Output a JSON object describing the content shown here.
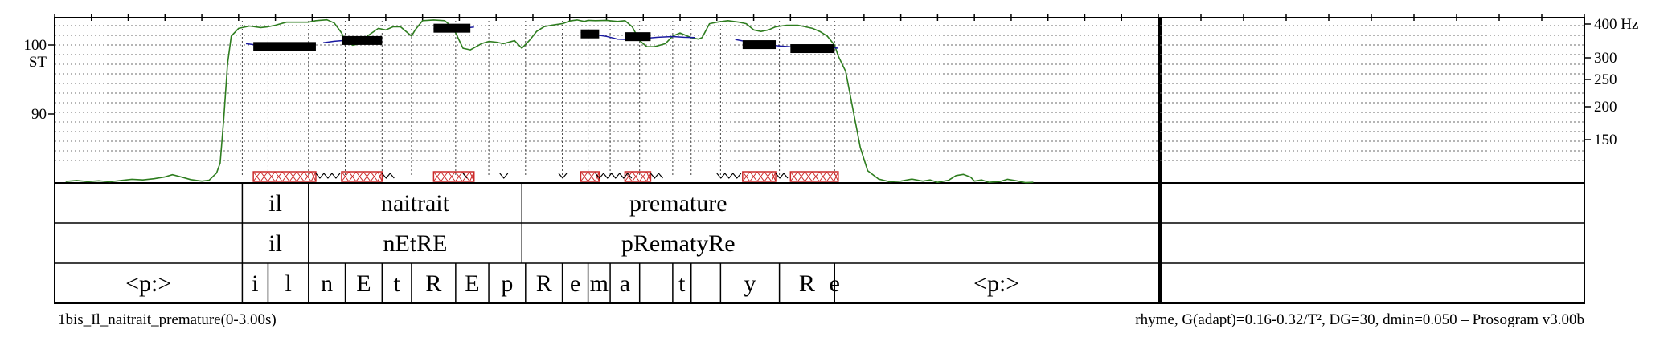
{
  "chart_data": {
    "type": "prosogram",
    "time_range_s": [
      0,
      3.0
    ],
    "left_axis": {
      "unit": "ST",
      "ticks": [
        {
          "value": 100,
          "label": "100"
        },
        {
          "value": 90,
          "label": "90"
        }
      ],
      "range_st": [
        78.6,
        102.0
      ]
    },
    "right_axis": {
      "unit": "Hz",
      "ticks": [
        {
          "value": 400,
          "label": "400 Hz"
        },
        {
          "value": 300,
          "label": "300"
        },
        {
          "value": 250,
          "label": "250"
        },
        {
          "value": 200,
          "label": "200"
        },
        {
          "value": 150,
          "label": "150"
        }
      ]
    },
    "second_panel_range_s": [
      3.0,
      4.0
    ],
    "pitch_curve_green": [
      [
        0.03,
        -2.0
      ],
      [
        0.06,
        -1.4
      ],
      [
        0.09,
        -2.1
      ],
      [
        0.12,
        -1.6
      ],
      [
        0.15,
        -2.2
      ],
      [
        0.18,
        -1.4
      ],
      [
        0.21,
        -0.6
      ],
      [
        0.24,
        -1.0
      ],
      [
        0.27,
        -0.2
      ],
      [
        0.3,
        1.0
      ],
      [
        0.32,
        2.4
      ],
      [
        0.34,
        1.2
      ],
      [
        0.37,
        -0.8
      ],
      [
        0.4,
        -1.8
      ],
      [
        0.42,
        -1.2
      ],
      [
        0.44,
        3.5
      ],
      [
        0.45,
        10.0
      ],
      [
        0.46,
        40.0
      ],
      [
        0.47,
        75.0
      ],
      [
        0.48,
        93.0
      ],
      [
        0.5,
        98.0
      ],
      [
        0.53,
        99.5
      ],
      [
        0.56,
        98.5
      ],
      [
        0.58,
        99.0
      ],
      [
        0.6,
        100.0
      ],
      [
        0.63,
        102.0
      ],
      [
        0.66,
        102.0
      ],
      [
        0.69,
        102.0
      ],
      [
        0.71,
        103.0
      ],
      [
        0.74,
        103.6
      ],
      [
        0.76,
        101.5
      ],
      [
        0.78,
        95.0
      ],
      [
        0.79,
        90.0
      ],
      [
        0.81,
        87.0
      ],
      [
        0.83,
        88.0
      ],
      [
        0.85,
        93.0
      ],
      [
        0.88,
        98.0
      ],
      [
        0.9,
        97.0
      ],
      [
        0.92,
        99.0
      ],
      [
        0.94,
        99.0
      ],
      [
        0.96,
        95.0
      ],
      [
        0.97,
        93.0
      ],
      [
        0.98,
        97.0
      ],
      [
        1.0,
        103.0
      ],
      [
        1.03,
        103.5
      ],
      [
        1.06,
        103.0
      ],
      [
        1.08,
        99.0
      ],
      [
        1.09,
        95.0
      ],
      [
        1.11,
        85.0
      ],
      [
        1.13,
        84.0
      ],
      [
        1.16,
        88.0
      ],
      [
        1.18,
        89.5
      ],
      [
        1.2,
        89.0
      ],
      [
        1.22,
        88.0
      ],
      [
        1.25,
        90.0
      ],
      [
        1.27,
        85.0
      ],
      [
        1.29,
        90.0
      ],
      [
        1.31,
        96.0
      ],
      [
        1.33,
        99.0
      ],
      [
        1.35,
        100.0
      ],
      [
        1.38,
        101.0
      ],
      [
        1.4,
        102.8
      ],
      [
        1.42,
        103.5
      ],
      [
        1.44,
        102.5
      ],
      [
        1.45,
        103.2
      ],
      [
        1.47,
        103.0
      ],
      [
        1.5,
        103.2
      ],
      [
        1.53,
        102.5
      ],
      [
        1.55,
        103.0
      ],
      [
        1.57,
        99.0
      ],
      [
        1.59,
        90.0
      ],
      [
        1.61,
        86.0
      ],
      [
        1.63,
        86.0
      ],
      [
        1.66,
        88.0
      ],
      [
        1.68,
        93.0
      ],
      [
        1.7,
        95.0
      ],
      [
        1.73,
        92.0
      ],
      [
        1.75,
        91.0
      ],
      [
        1.76,
        92.0
      ],
      [
        1.78,
        101.0
      ],
      [
        1.8,
        102.0
      ],
      [
        1.83,
        103.0
      ],
      [
        1.86,
        102.0
      ],
      [
        1.88,
        101.0
      ],
      [
        1.9,
        97.0
      ],
      [
        1.92,
        96.0
      ],
      [
        1.94,
        97.0
      ],
      [
        1.96,
        99.0
      ],
      [
        1.99,
        100.0
      ],
      [
        2.02,
        100.0
      ],
      [
        2.04,
        99.0
      ],
      [
        2.06,
        98.0
      ],
      [
        2.08,
        96.0
      ],
      [
        2.1,
        93.0
      ],
      [
        2.12,
        87.0
      ],
      [
        2.13,
        80.0
      ],
      [
        2.15,
        70.0
      ],
      [
        2.17,
        45.0
      ],
      [
        2.19,
        20.0
      ],
      [
        2.21,
        5.0
      ],
      [
        2.24,
        -0.5
      ],
      [
        2.27,
        -2.2
      ],
      [
        2.3,
        -1.8
      ],
      [
        2.33,
        -0.5
      ],
      [
        2.36,
        -1.8
      ],
      [
        2.38,
        -1.0
      ],
      [
        2.4,
        -2.6
      ],
      [
        2.43,
        -1.2
      ],
      [
        2.45,
        1.8
      ],
      [
        2.47,
        2.6
      ],
      [
        2.49,
        0.8
      ],
      [
        2.5,
        -1.8
      ],
      [
        2.52,
        -1.0
      ],
      [
        2.54,
        -2.6
      ],
      [
        2.57,
        -2.0
      ],
      [
        2.59,
        -0.6
      ],
      [
        2.61,
        -1.4
      ],
      [
        2.64,
        -2.8
      ],
      [
        2.66,
        -2.6
      ]
    ],
    "pitch_curve_blue": [
      {
        "from": 0.52,
        "to": 0.71,
        "points": [
          [
            0.52,
            88.0
          ],
          [
            0.55,
            87.1
          ],
          [
            0.58,
            86.5
          ],
          [
            0.61,
            86.2
          ],
          [
            0.64,
            86.1
          ],
          [
            0.67,
            86.8
          ],
          [
            0.71,
            87.6
          ]
        ]
      },
      {
        "from": 0.73,
        "to": 0.89,
        "points": [
          [
            0.73,
            88.6
          ],
          [
            0.76,
            89.6
          ],
          [
            0.79,
            90.2
          ],
          [
            0.82,
            90.3
          ],
          [
            0.85,
            90.7
          ],
          [
            0.87,
            90.5
          ],
          [
            0.89,
            90.4
          ]
        ]
      },
      {
        "from": 1.03,
        "to": 1.14,
        "points": [
          [
            1.03,
            97.8
          ],
          [
            1.06,
            97.5
          ],
          [
            1.09,
            97.8
          ],
          [
            1.12,
            98.3
          ],
          [
            1.14,
            98.8
          ]
        ]
      },
      {
        "from": 1.43,
        "to": 1.74,
        "points": [
          [
            1.43,
            95.5
          ],
          [
            1.46,
            94.2
          ],
          [
            1.5,
            92.8
          ],
          [
            1.53,
            91.0
          ],
          [
            1.56,
            90.8
          ],
          [
            1.6,
            91.4
          ],
          [
            1.64,
            92.2
          ],
          [
            1.68,
            92.7
          ],
          [
            1.71,
            92.2
          ],
          [
            1.74,
            92.0
          ]
        ]
      },
      {
        "from": 1.85,
        "to": 2.13,
        "points": [
          [
            1.85,
            90.8
          ],
          [
            1.88,
            89.4
          ],
          [
            1.91,
            87.8
          ],
          [
            1.94,
            87.2
          ],
          [
            1.97,
            86.5
          ],
          [
            2.0,
            86.0
          ],
          [
            2.03,
            85.7
          ],
          [
            2.06,
            85.5
          ],
          [
            2.09,
            85.6
          ],
          [
            2.11,
            85.5
          ],
          [
            2.13,
            85.1
          ]
        ]
      }
    ],
    "stylized_tones": [
      {
        "t1": 0.54,
        "t2": 0.71,
        "st": 86.2
      },
      {
        "t1": 0.78,
        "t2": 0.89,
        "st": 90.1
      },
      {
        "t1": 1.03,
        "t2": 1.13,
        "st": 98.1
      },
      {
        "t1": 1.43,
        "t2": 1.48,
        "st": 94.4
      },
      {
        "t1": 1.55,
        "t2": 1.62,
        "st": 92.6
      },
      {
        "t1": 1.87,
        "t2": 1.96,
        "st": 87.4
      },
      {
        "t1": 2.0,
        "t2": 2.12,
        "st": 84.8
      }
    ],
    "nuclei": [
      [
        0.54,
        0.71
      ],
      [
        0.78,
        0.89
      ],
      [
        1.03,
        1.14
      ],
      [
        1.43,
        1.48
      ],
      [
        1.55,
        1.62
      ],
      [
        1.87,
        1.96
      ],
      [
        2.0,
        2.13
      ]
    ],
    "voicing_zigzags": [
      [
        0.71,
        0.78
      ],
      [
        0.89,
        0.93
      ],
      [
        1.11,
        1.13
      ],
      [
        1.21,
        1.24
      ],
      [
        1.37,
        1.4
      ],
      [
        1.47,
        1.57
      ],
      [
        1.62,
        1.66
      ],
      [
        1.8,
        1.87
      ],
      [
        1.96,
        2.0
      ]
    ],
    "segment_boundaries_s": [
      0.51,
      0.58,
      0.69,
      0.79,
      0.89,
      0.97,
      1.09,
      1.18,
      1.28,
      1.38,
      1.45,
      1.51,
      1.59,
      1.68,
      1.73,
      1.81,
      1.97,
      2.12
    ],
    "tiers": [
      {
        "name": "syllables_orth",
        "intervals": [
          {
            "t1": 0.51,
            "t2": 0.69,
            "text": "il"
          },
          {
            "t1": 0.69,
            "t2": 1.27,
            "text": "naitrait"
          },
          {
            "t1": 1.27,
            "t2": 2.12,
            "text": "premature"
          }
        ]
      },
      {
        "name": "syllables_phon",
        "intervals": [
          {
            "t1": 0.51,
            "t2": 0.69,
            "text": "il"
          },
          {
            "t1": 0.69,
            "t2": 1.27,
            "text": "nEtRE"
          },
          {
            "t1": 1.27,
            "t2": 2.12,
            "text": "pRematyRe"
          }
        ]
      },
      {
        "name": "phones",
        "intervals": [
          {
            "t1": 0.0,
            "t2": 0.51,
            "text": "<p:>"
          },
          {
            "t1": 0.51,
            "t2": 0.58,
            "text": "i"
          },
          {
            "t1": 0.58,
            "t2": 0.69,
            "text": "l"
          },
          {
            "t1": 0.69,
            "t2": 0.79,
            "text": "n"
          },
          {
            "t1": 0.79,
            "t2": 0.89,
            "text": "E"
          },
          {
            "t1": 0.89,
            "t2": 0.97,
            "text": "t"
          },
          {
            "t1": 0.97,
            "t2": 1.09,
            "text": "R"
          },
          {
            "t1": 1.09,
            "t2": 1.18,
            "text": "E"
          },
          {
            "t1": 1.18,
            "t2": 1.28,
            "text": "p"
          },
          {
            "t1": 1.28,
            "t2": 1.38,
            "text": "R"
          },
          {
            "t1": 1.38,
            "t2": 1.45,
            "text": "e"
          },
          {
            "t1": 1.45,
            "t2": 1.51,
            "text": "m"
          },
          {
            "t1": 1.51,
            "t2": 1.59,
            "text": "a"
          },
          {
            "t1": 1.59,
            "t2": 1.68,
            "text": ""
          },
          {
            "t1": 1.68,
            "t2": 1.73,
            "text": "t"
          },
          {
            "t1": 1.73,
            "t2": 1.81,
            "text": ""
          },
          {
            "t1": 1.81,
            "t2": 1.97,
            "text": "y"
          },
          {
            "t1": 1.97,
            "t2": 2.12,
            "text": "R"
          },
          {
            "t1": 2.12,
            "t2": 2.12,
            "text": "e"
          },
          {
            "t1": 2.12,
            "t2": 3.0,
            "text": "<p:>"
          }
        ]
      }
    ],
    "footer_left": "1bis_Il_naitrait_premature(0-3.00s)",
    "footer_right": "rhyme, G(adapt)=0.16-0.32/T², DG=30, dmin=0.050 – Prosogram v3.00b"
  },
  "colors": {
    "pitch_curve": "#2e7d1f",
    "tone_curve": "#1a1aa0",
    "nucleus": "#cc2a2a",
    "stylized": "#000000",
    "grid": "#6b6b6b"
  }
}
